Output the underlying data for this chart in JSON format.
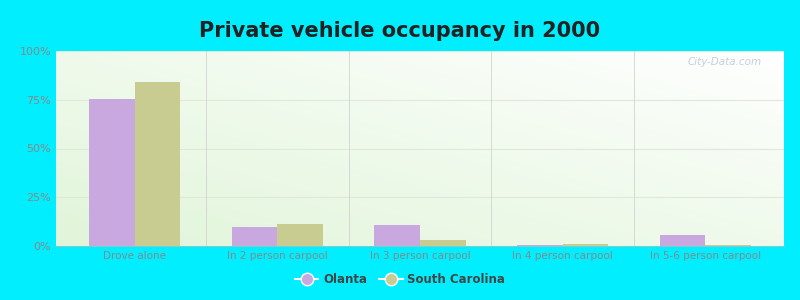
{
  "title": "Private vehicle occupancy in 2000",
  "categories": [
    "Drove alone",
    "In 2 person carpool",
    "In 3 person carpool",
    "In 4 person carpool",
    "In 5-6 person carpool"
  ],
  "olanta_values": [
    75.5,
    10.0,
    11.0,
    0.3,
    5.5
  ],
  "sc_values": [
    84.0,
    11.5,
    3.2,
    0.8,
    0.5
  ],
  "olanta_color": "#c9a8e0",
  "sc_color": "#c8cc90",
  "outer_bg": "#00eeff",
  "ylim": [
    0,
    100
  ],
  "yticks": [
    0,
    25,
    50,
    75,
    100
  ],
  "yticklabels": [
    "0%",
    "25%",
    "50%",
    "75%",
    "100%"
  ],
  "legend_olanta": "Olanta",
  "legend_sc": "South Carolina",
  "bar_width": 0.32,
  "title_fontsize": 15,
  "watermark": "City-Data.com",
  "bg_color_topleft": "#f2fae8",
  "bg_color_bottomright": "#f8fcf4",
  "tick_color": "#888888",
  "grid_color": "#e0e8d8"
}
